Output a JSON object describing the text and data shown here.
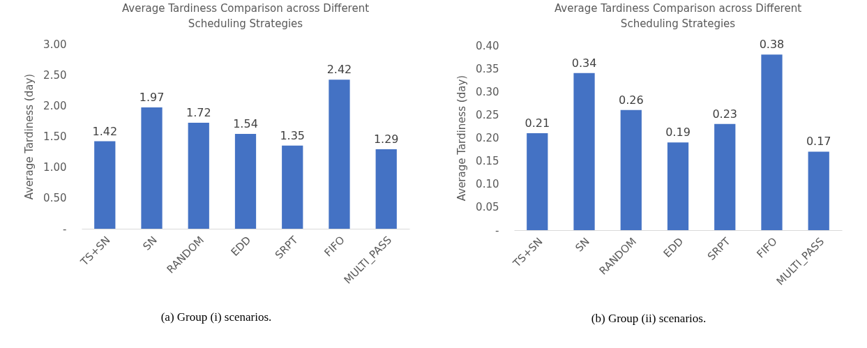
{
  "chart_data": [
    {
      "type": "bar",
      "title": "Average Tardiness Comparison across Different Scheduling Strategies",
      "ylabel": "Average Tardiness (day)",
      "categories": [
        "TS+SN",
        "SN",
        "RANDOM",
        "EDD",
        "SRPT",
        "FIFO",
        "MULTI_PASS"
      ],
      "values": [
        1.42,
        1.97,
        1.72,
        1.54,
        1.35,
        2.42,
        1.29
      ],
      "color": "#4472c4",
      "ylim": [
        0,
        3
      ],
      "yticks": [
        {
          "value": 0,
          "label": "-"
        },
        {
          "value": 0.5,
          "label": "0.50"
        },
        {
          "value": 1,
          "label": "1.00"
        },
        {
          "value": 1.5,
          "label": "1.50"
        },
        {
          "value": 2,
          "label": "2.00"
        },
        {
          "value": 2.5,
          "label": "2.50"
        },
        {
          "value": 3,
          "label": "3.00"
        }
      ],
      "data_labels": true,
      "annotations": [
        "(a) Group (i) scenarios."
      ]
    },
    {
      "type": "bar",
      "title": "Average Tardiness Comparison across Different Scheduling Strategies",
      "ylabel": "Average Tardiness (day)",
      "categories": [
        "TS+SN",
        "SN",
        "RANDOM",
        "EDD",
        "SRPT",
        "FIFO",
        "MULTI_PASS"
      ],
      "values": [
        0.21,
        0.34,
        0.26,
        0.19,
        0.23,
        0.38,
        0.17
      ],
      "color": "#4472c4",
      "ylim": [
        0,
        0.4
      ],
      "yticks": [
        {
          "value": 0,
          "label": "-"
        },
        {
          "value": 0.05,
          "label": "0.05"
        },
        {
          "value": 0.1,
          "label": "0.10"
        },
        {
          "value": 0.15,
          "label": "0.15"
        },
        {
          "value": 0.2,
          "label": "0.20"
        },
        {
          "value": 0.25,
          "label": "0.25"
        },
        {
          "value": 0.3,
          "label": "0.30"
        },
        {
          "value": 0.35,
          "label": "0.35"
        },
        {
          "value": 0.4,
          "label": "0.40"
        }
      ],
      "data_labels": true,
      "annotations": [
        "(b) Group (ii) scenarios."
      ]
    }
  ]
}
